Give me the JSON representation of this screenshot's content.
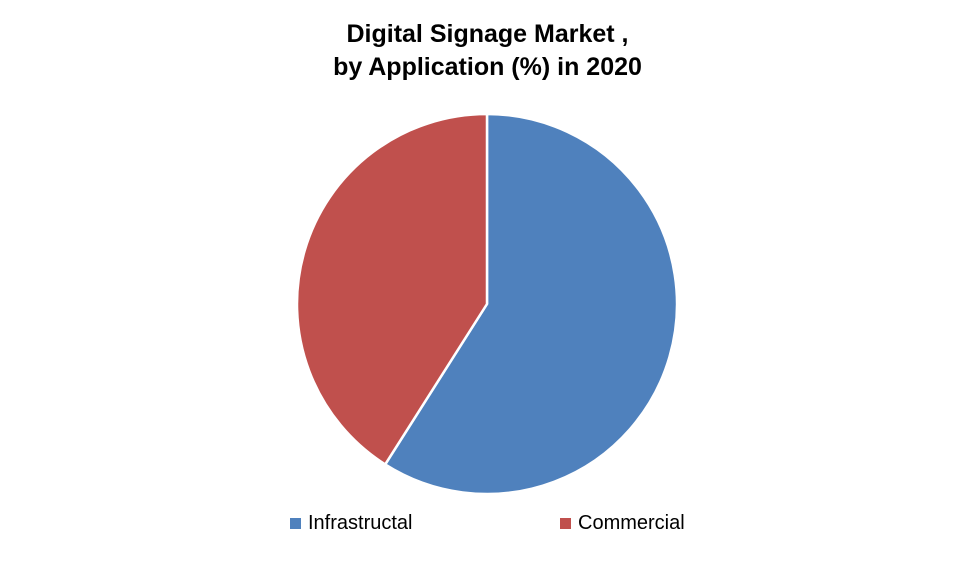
{
  "chart_data": {
    "type": "pie",
    "title_lines": [
      "Digital Signage Market ,",
      "by Application (%) in 2020"
    ],
    "categories": [
      "Infrastructal",
      "Commercial"
    ],
    "values": [
      59,
      41
    ],
    "colors": [
      "#4f81bd",
      "#c0504d"
    ],
    "start_angle_deg": 0,
    "direction": "clockwise",
    "legend_position": "bottom"
  }
}
